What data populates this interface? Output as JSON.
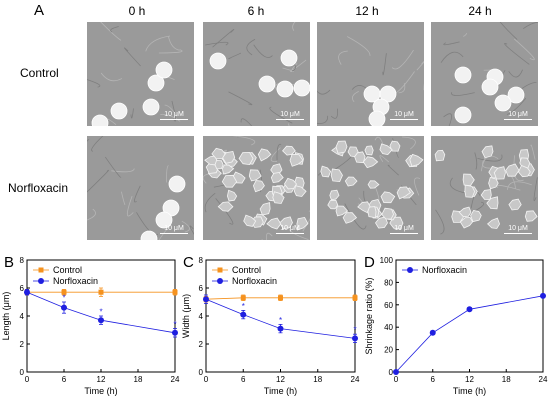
{
  "figure": {
    "panel_A": {
      "letter": "A",
      "time_headers": [
        "0 h",
        "6 h",
        "12 h",
        "24 h"
      ],
      "row_labels": [
        "Control",
        "Norfloxacin"
      ],
      "scale_label": "10 μM",
      "colors": {
        "background": "#9a9a9a",
        "cell_healthy": "#f2f2f2",
        "cell_shrunk": "#c8c8c8"
      }
    },
    "panel_letters": {
      "B": "B",
      "C": "C",
      "D": "D"
    }
  },
  "chart_data": [
    {
      "panel": "B",
      "type": "line",
      "xlabel": "Time (h)",
      "ylabel": "Length (μm)",
      "xlim": [
        0,
        24
      ],
      "ylim": [
        0,
        8
      ],
      "xticks": [
        0,
        6,
        12,
        18,
        24
      ],
      "yticks": [
        0,
        2,
        4,
        6,
        8
      ],
      "legend_position": "top-left",
      "series": [
        {
          "name": "Control",
          "color": "#f5921e",
          "marker": "square",
          "x": [
            0,
            6,
            12,
            24
          ],
          "y": [
            5.7,
            5.7,
            5.7,
            5.7
          ],
          "err": [
            0.2,
            0.2,
            0.3,
            0.2
          ]
        },
        {
          "name": "Norfloxacin",
          "color": "#1f1fe0",
          "marker": "circle",
          "x": [
            0,
            6,
            12,
            24
          ],
          "y": [
            5.7,
            4.6,
            3.7,
            2.8
          ],
          "err": [
            0.2,
            0.4,
            0.3,
            0.3
          ],
          "significance": [
            false,
            true,
            true,
            true
          ]
        }
      ],
      "significance_mark": "*"
    },
    {
      "panel": "C",
      "type": "line",
      "xlabel": "Time (h)",
      "ylabel": "Width (μm)",
      "xlim": [
        0,
        24
      ],
      "ylim": [
        0,
        8
      ],
      "xticks": [
        0,
        6,
        12,
        18,
        24
      ],
      "yticks": [
        0,
        2,
        4,
        6,
        8
      ],
      "legend_position": "top-left",
      "series": [
        {
          "name": "Control",
          "color": "#f5921e",
          "marker": "square",
          "x": [
            0,
            6,
            12,
            24
          ],
          "y": [
            5.2,
            5.3,
            5.3,
            5.3
          ],
          "err": [
            0.2,
            0.2,
            0.2,
            0.2
          ]
        },
        {
          "name": "Norfloxacin",
          "color": "#1f1fe0",
          "marker": "circle",
          "x": [
            0,
            6,
            12,
            24
          ],
          "y": [
            5.2,
            4.1,
            3.1,
            2.4
          ],
          "err": [
            0.3,
            0.3,
            0.3,
            0.3
          ],
          "significance": [
            false,
            true,
            true,
            true
          ]
        }
      ],
      "significance_mark": "*"
    },
    {
      "panel": "D",
      "type": "line",
      "xlabel": "Time (h)",
      "ylabel": "Shrinkage ratio (%)",
      "xlim": [
        0,
        24
      ],
      "ylim": [
        0,
        100
      ],
      "xticks": [
        0,
        6,
        12,
        18,
        24
      ],
      "yticks": [
        0,
        20,
        40,
        60,
        80,
        100
      ],
      "legend_position": "top-left",
      "series": [
        {
          "name": "Norfloxacin",
          "color": "#1f1fe0",
          "marker": "circle",
          "x": [
            0,
            6,
            12,
            24
          ],
          "y": [
            0,
            35,
            56,
            68
          ]
        }
      ]
    }
  ]
}
